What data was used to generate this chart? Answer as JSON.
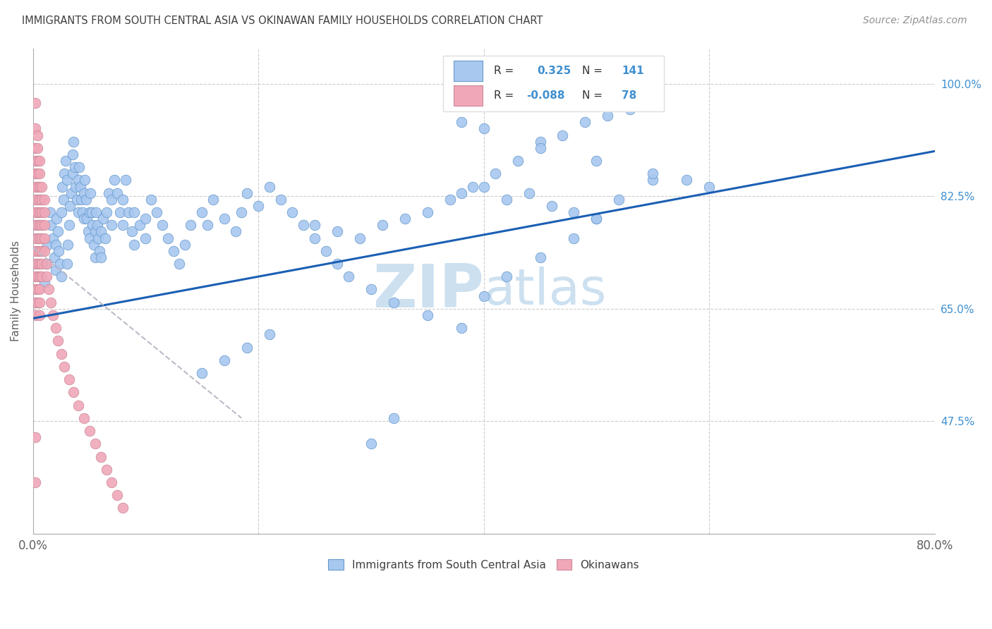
{
  "title": "IMMIGRANTS FROM SOUTH CENTRAL ASIA VS OKINAWAN FAMILY HOUSEHOLDS CORRELATION CHART",
  "source": "Source: ZipAtlas.com",
  "ylabel": "Family Households",
  "blue_color": "#a8c8f0",
  "pink_color": "#f0a8b8",
  "blue_edge_color": "#6699cc",
  "pink_edge_color": "#cc8899",
  "trend_blue_color": "#1a5fb4",
  "trend_pink_color": "#c0b8c8",
  "watermark_color": "#cce0f0",
  "background_color": "#ffffff",
  "title_color": "#404040",
  "source_color": "#909090",
  "axis_label_color": "#606060",
  "right_tick_color": "#4090d0",
  "legend_box_color": "#dddddd",
  "blue_trend": [
    0.0,
    0.8,
    0.635,
    0.895
  ],
  "pink_trend": [
    0.0,
    0.185,
    0.745,
    0.48
  ],
  "xmin": 0.0,
  "xmax": 0.8,
  "ymin": 0.3,
  "ymax": 1.055,
  "xticks": [
    0.0,
    0.2,
    0.4,
    0.6,
    0.8
  ],
  "yticks": [
    0.475,
    0.65,
    0.825,
    1.0
  ],
  "ytick_labels": [
    "47.5%",
    "65.0%",
    "82.5%",
    "100.0%"
  ],
  "figsize": [
    14.06,
    8.92
  ],
  "dpi": 100,
  "blue_x": [
    0.01,
    0.012,
    0.013,
    0.015,
    0.016,
    0.018,
    0.019,
    0.02,
    0.02,
    0.021,
    0.022,
    0.023,
    0.024,
    0.025,
    0.025,
    0.026,
    0.027,
    0.028,
    0.029,
    0.03,
    0.03,
    0.031,
    0.032,
    0.033,
    0.034,
    0.035,
    0.035,
    0.036,
    0.037,
    0.038,
    0.039,
    0.04,
    0.04,
    0.041,
    0.042,
    0.043,
    0.044,
    0.045,
    0.045,
    0.046,
    0.047,
    0.048,
    0.049,
    0.05,
    0.05,
    0.051,
    0.052,
    0.053,
    0.054,
    0.055,
    0.055,
    0.056,
    0.057,
    0.058,
    0.059,
    0.06,
    0.06,
    0.062,
    0.064,
    0.065,
    0.067,
    0.07,
    0.07,
    0.072,
    0.075,
    0.077,
    0.08,
    0.08,
    0.082,
    0.085,
    0.088,
    0.09,
    0.09,
    0.095,
    0.1,
    0.1,
    0.105,
    0.11,
    0.115,
    0.12,
    0.125,
    0.13,
    0.135,
    0.14,
    0.15,
    0.155,
    0.16,
    0.17,
    0.18,
    0.185,
    0.19,
    0.2,
    0.21,
    0.22,
    0.23,
    0.24,
    0.25,
    0.26,
    0.27,
    0.28,
    0.3,
    0.32,
    0.35,
    0.38,
    0.4,
    0.42,
    0.45,
    0.48,
    0.5,
    0.52,
    0.55,
    0.38,
    0.4,
    0.45,
    0.5,
    0.55,
    0.58,
    0.6,
    0.38,
    0.4,
    0.42,
    0.44,
    0.46,
    0.48,
    0.5,
    0.25,
    0.27,
    0.29,
    0.31,
    0.33,
    0.35,
    0.37,
    0.39,
    0.41,
    0.43,
    0.45,
    0.47,
    0.49,
    0.51,
    0.53,
    0.55,
    0.15,
    0.17,
    0.19,
    0.21,
    0.3,
    0.32
  ],
  "blue_y": [
    0.69,
    0.72,
    0.75,
    0.8,
    0.78,
    0.76,
    0.73,
    0.71,
    0.75,
    0.79,
    0.77,
    0.74,
    0.72,
    0.7,
    0.8,
    0.84,
    0.82,
    0.86,
    0.88,
    0.85,
    0.72,
    0.75,
    0.78,
    0.81,
    0.83,
    0.86,
    0.89,
    0.91,
    0.87,
    0.84,
    0.82,
    0.8,
    0.85,
    0.87,
    0.84,
    0.82,
    0.8,
    0.79,
    0.83,
    0.85,
    0.82,
    0.79,
    0.77,
    0.76,
    0.8,
    0.83,
    0.8,
    0.78,
    0.75,
    0.73,
    0.77,
    0.8,
    0.78,
    0.76,
    0.74,
    0.73,
    0.77,
    0.79,
    0.76,
    0.8,
    0.83,
    0.78,
    0.82,
    0.85,
    0.83,
    0.8,
    0.78,
    0.82,
    0.85,
    0.8,
    0.77,
    0.75,
    0.8,
    0.78,
    0.76,
    0.79,
    0.82,
    0.8,
    0.78,
    0.76,
    0.74,
    0.72,
    0.75,
    0.78,
    0.8,
    0.78,
    0.82,
    0.79,
    0.77,
    0.8,
    0.83,
    0.81,
    0.84,
    0.82,
    0.8,
    0.78,
    0.76,
    0.74,
    0.72,
    0.7,
    0.68,
    0.66,
    0.64,
    0.62,
    0.67,
    0.7,
    0.73,
    0.76,
    0.79,
    0.82,
    0.85,
    0.94,
    0.93,
    0.91,
    0.88,
    0.86,
    0.85,
    0.84,
    0.83,
    0.84,
    0.82,
    0.83,
    0.81,
    0.8,
    0.79,
    0.78,
    0.77,
    0.76,
    0.78,
    0.79,
    0.8,
    0.82,
    0.84,
    0.86,
    0.88,
    0.9,
    0.92,
    0.94,
    0.95,
    0.96,
    0.98,
    0.55,
    0.57,
    0.59,
    0.61,
    0.44,
    0.48
  ],
  "pink_x": [
    0.002,
    0.002,
    0.002,
    0.002,
    0.002,
    0.002,
    0.002,
    0.002,
    0.002,
    0.002,
    0.002,
    0.002,
    0.002,
    0.002,
    0.002,
    0.002,
    0.002,
    0.002,
    0.004,
    0.004,
    0.004,
    0.004,
    0.004,
    0.004,
    0.004,
    0.004,
    0.004,
    0.004,
    0.004,
    0.004,
    0.004,
    0.004,
    0.006,
    0.006,
    0.006,
    0.006,
    0.006,
    0.006,
    0.006,
    0.006,
    0.006,
    0.006,
    0.006,
    0.006,
    0.006,
    0.008,
    0.008,
    0.008,
    0.008,
    0.008,
    0.008,
    0.008,
    0.008,
    0.01,
    0.01,
    0.01,
    0.01,
    0.01,
    0.012,
    0.012,
    0.014,
    0.016,
    0.018,
    0.02,
    0.022,
    0.025,
    0.028,
    0.032,
    0.036,
    0.04,
    0.045,
    0.05,
    0.055,
    0.06,
    0.065,
    0.07,
    0.075,
    0.08
  ],
  "pink_y": [
    0.97,
    0.93,
    0.9,
    0.88,
    0.86,
    0.84,
    0.82,
    0.8,
    0.78,
    0.76,
    0.74,
    0.72,
    0.7,
    0.68,
    0.66,
    0.64,
    0.45,
    0.38,
    0.92,
    0.9,
    0.88,
    0.86,
    0.84,
    0.82,
    0.8,
    0.78,
    0.76,
    0.74,
    0.72,
    0.7,
    0.68,
    0.66,
    0.88,
    0.86,
    0.84,
    0.82,
    0.8,
    0.78,
    0.76,
    0.74,
    0.72,
    0.7,
    0.68,
    0.66,
    0.64,
    0.84,
    0.82,
    0.8,
    0.78,
    0.76,
    0.74,
    0.72,
    0.7,
    0.82,
    0.8,
    0.78,
    0.76,
    0.74,
    0.72,
    0.7,
    0.68,
    0.66,
    0.64,
    0.62,
    0.6,
    0.58,
    0.56,
    0.54,
    0.52,
    0.5,
    0.48,
    0.46,
    0.44,
    0.42,
    0.4,
    0.38,
    0.36,
    0.34
  ]
}
